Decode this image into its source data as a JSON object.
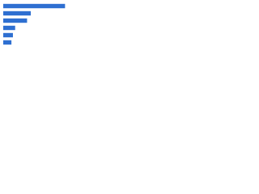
{
  "chart_data": {
    "type": "bar",
    "orientation": "horizontal",
    "categories": [
      null,
      null,
      null,
      null,
      null,
      null
    ],
    "values": [
      83,
      37,
      32,
      16,
      13,
      11
    ],
    "color": "#2e6fd1",
    "xlim": [
      0,
      100
    ]
  }
}
